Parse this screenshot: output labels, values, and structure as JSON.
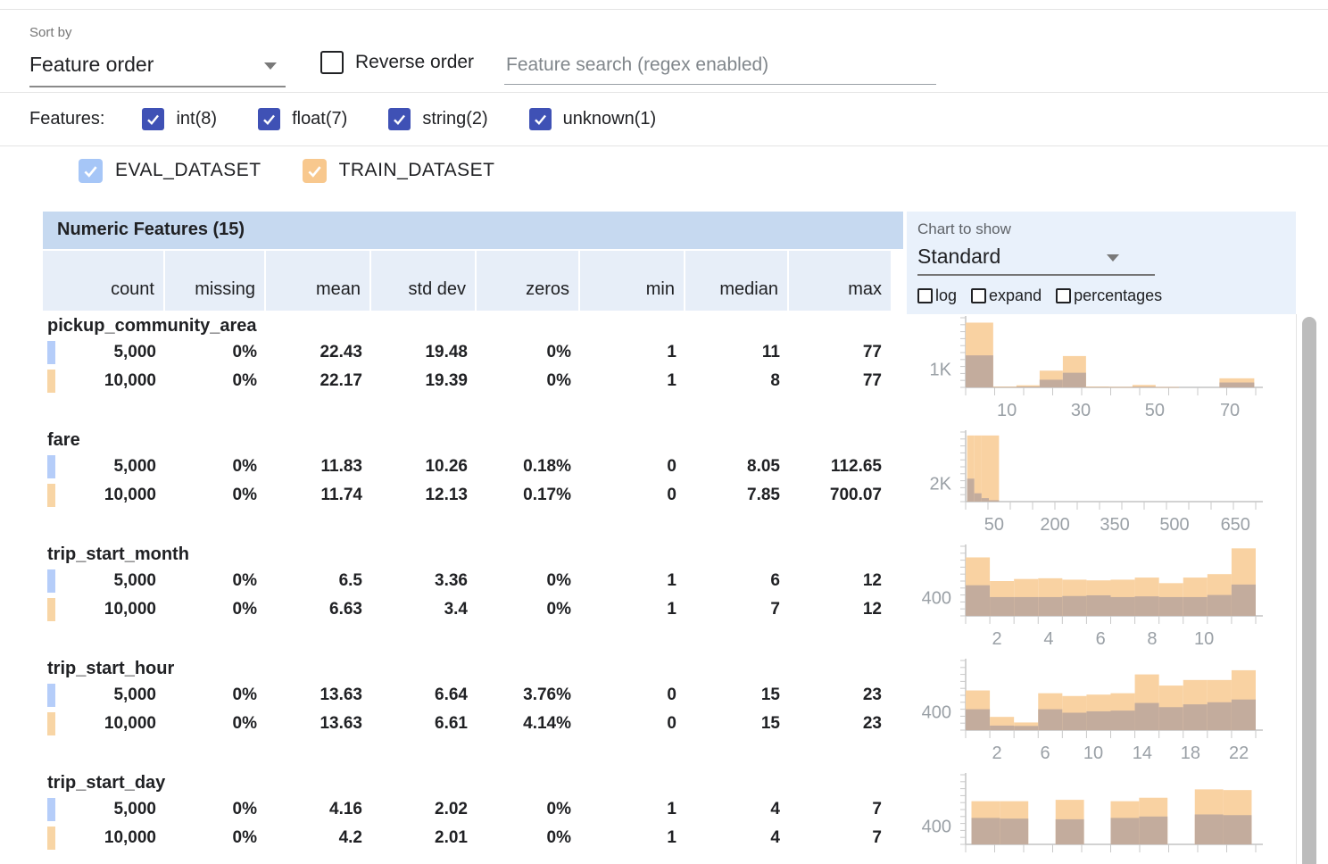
{
  "toolbar": {
    "sort_by_label": "Sort by",
    "sort_by_value": "Feature order",
    "reverse_order_label": "Reverse order",
    "search_placeholder": "Feature search (regex enabled)"
  },
  "filters": {
    "label": "Features:",
    "checkbox_color": "#3f51b5",
    "types": [
      "int(8)",
      "float(7)",
      "string(2)",
      "unknown(1)"
    ]
  },
  "datasets": [
    {
      "name": "EVAL_DATASET",
      "color": "#a6c6f7"
    },
    {
      "name": "TRAIN_DATASET",
      "color": "#f8c88e"
    }
  ],
  "table": {
    "title": "Numeric Features (15)",
    "columns": [
      "count",
      "missing",
      "mean",
      "std dev",
      "zeros",
      "min",
      "median",
      "max"
    ],
    "features": [
      {
        "name": "pickup_community_area",
        "rows": [
          {
            "marker": "#b5cdf9",
            "values": [
              "5,000",
              "0%",
              "22.43",
              "19.48",
              "0%",
              "1",
              "11",
              "77"
            ]
          },
          {
            "marker": "#f8d5a5",
            "values": [
              "10,000",
              "0%",
              "22.17",
              "19.39",
              "0%",
              "1",
              "8",
              "77"
            ]
          }
        ]
      },
      {
        "name": "fare",
        "rows": [
          {
            "marker": "#b5cdf9",
            "values": [
              "5,000",
              "0%",
              "11.83",
              "10.26",
              "0.18%",
              "0",
              "8.05",
              "112.65"
            ]
          },
          {
            "marker": "#f8d5a5",
            "values": [
              "10,000",
              "0%",
              "11.74",
              "12.13",
              "0.17%",
              "0",
              "7.85",
              "700.07"
            ]
          }
        ]
      },
      {
        "name": "trip_start_month",
        "rows": [
          {
            "marker": "#b5cdf9",
            "values": [
              "5,000",
              "0%",
              "6.5",
              "3.36",
              "0%",
              "1",
              "6",
              "12"
            ]
          },
          {
            "marker": "#f8d5a5",
            "values": [
              "10,000",
              "0%",
              "6.63",
              "3.4",
              "0%",
              "1",
              "7",
              "12"
            ]
          }
        ]
      },
      {
        "name": "trip_start_hour",
        "rows": [
          {
            "marker": "#b5cdf9",
            "values": [
              "5,000",
              "0%",
              "13.63",
              "6.64",
              "3.76%",
              "0",
              "15",
              "23"
            ]
          },
          {
            "marker": "#f8d5a5",
            "values": [
              "10,000",
              "0%",
              "13.63",
              "6.61",
              "4.14%",
              "0",
              "15",
              "23"
            ]
          }
        ]
      },
      {
        "name": "trip_start_day",
        "rows": [
          {
            "marker": "#b5cdf9",
            "values": [
              "5,000",
              "0%",
              "4.16",
              "2.02",
              "0%",
              "1",
              "4",
              "7"
            ]
          },
          {
            "marker": "#f8d5a5",
            "values": [
              "10,000",
              "0%",
              "4.2",
              "2.01",
              "0%",
              "1",
              "4",
              "7"
            ]
          }
        ]
      }
    ]
  },
  "chart_controls": {
    "label": "Chart to show",
    "selected": "Standard",
    "checkboxes": [
      "log",
      "expand",
      "percentages"
    ]
  },
  "chart_data": [
    {
      "type": "histogram",
      "feature": "pickup_community_area",
      "ylabel": "1K",
      "colors": {
        "train": "#f9d2a2",
        "overlap": "#c3ac9d"
      },
      "note": "bar heights are fractions of chart height; x0/x1 fractions of x-axis",
      "bars": [
        {
          "x0": 0.0,
          "x1": 0.095,
          "train": 0.93,
          "overlap": 0.46
        },
        {
          "x0": 0.095,
          "x1": 0.175,
          "train": 0.012,
          "overlap": 0.006
        },
        {
          "x0": 0.175,
          "x1": 0.255,
          "train": 0.03,
          "overlap": 0.012
        },
        {
          "x0": 0.255,
          "x1": 0.335,
          "train": 0.24,
          "overlap": 0.11
        },
        {
          "x0": 0.335,
          "x1": 0.415,
          "train": 0.45,
          "overlap": 0.21
        },
        {
          "x0": 0.415,
          "x1": 0.495,
          "train": 0.012,
          "overlap": 0.006
        },
        {
          "x0": 0.495,
          "x1": 0.575,
          "train": 0.008,
          "overlap": 0.004
        },
        {
          "x0": 0.575,
          "x1": 0.655,
          "train": 0.035,
          "overlap": 0.01
        },
        {
          "x0": 0.655,
          "x1": 0.735,
          "train": 0.006,
          "overlap": 0.003
        },
        {
          "x0": 0.875,
          "x1": 0.995,
          "train": 0.13,
          "overlap": 0.07
        }
      ],
      "xticks": [
        {
          "f": 0.142,
          "label": "10"
        },
        {
          "f": 0.397,
          "label": "30"
        },
        {
          "f": 0.652,
          "label": "50"
        },
        {
          "f": 0.911,
          "label": "70"
        }
      ],
      "minor_ticks": 10
    },
    {
      "type": "histogram",
      "feature": "fare",
      "ylabel": "2K",
      "colors": {
        "train": "#f9d2a2",
        "overlap": "#c3ac9d"
      },
      "bars": [
        {
          "x0": 0.005,
          "x1": 0.03,
          "train": 0.95,
          "overlap": 0.33
        },
        {
          "x0": 0.03,
          "x1": 0.055,
          "train": 0.95,
          "overlap": 0.12
        },
        {
          "x0": 0.055,
          "x1": 0.08,
          "train": 0.95,
          "overlap": 0.05
        },
        {
          "x0": 0.08,
          "x1": 0.115,
          "train": 0.95,
          "overlap": 0.02
        }
      ],
      "xticks": [
        {
          "f": 0.098,
          "label": "50"
        },
        {
          "f": 0.308,
          "label": "200"
        },
        {
          "f": 0.514,
          "label": "350"
        },
        {
          "f": 0.72,
          "label": "500"
        },
        {
          "f": 0.93,
          "label": "650"
        }
      ],
      "minor_ticks": 13
    },
    {
      "type": "histogram",
      "feature": "trip_start_month",
      "ylabel": "400",
      "colors": {
        "train": "#f9d2a2",
        "overlap": "#c3ac9d"
      },
      "bins": 12,
      "train_heights": [
        0.84,
        0.5,
        0.53,
        0.54,
        0.52,
        0.51,
        0.52,
        0.55,
        0.47,
        0.55,
        0.6,
        0.97
      ],
      "overlap_heights": [
        0.44,
        0.27,
        0.27,
        0.27,
        0.285,
        0.295,
        0.27,
        0.28,
        0.27,
        0.27,
        0.3,
        0.45
      ],
      "xticks": [
        {
          "f": 0.108,
          "label": "2"
        },
        {
          "f": 0.286,
          "label": "4"
        },
        {
          "f": 0.465,
          "label": "6"
        },
        {
          "f": 0.643,
          "label": "8"
        },
        {
          "f": 0.822,
          "label": "10"
        }
      ],
      "minor_ticks": 12
    },
    {
      "type": "histogram",
      "feature": "trip_start_hour",
      "ylabel": "400",
      "colors": {
        "train": "#f9d2a2",
        "overlap": "#c3ac9d"
      },
      "bins": 12,
      "train_heights": [
        0.57,
        0.19,
        0.11,
        0.53,
        0.49,
        0.51,
        0.53,
        0.8,
        0.64,
        0.72,
        0.72,
        0.86
      ],
      "overlap_heights": [
        0.3,
        0.065,
        0.06,
        0.3,
        0.25,
        0.27,
        0.28,
        0.39,
        0.33,
        0.37,
        0.4,
        0.44
      ],
      "xticks": [
        {
          "f": 0.108,
          "label": "2"
        },
        {
          "f": 0.274,
          "label": "6"
        },
        {
          "f": 0.44,
          "label": "10"
        },
        {
          "f": 0.609,
          "label": "14"
        },
        {
          "f": 0.775,
          "label": "18"
        },
        {
          "f": 0.942,
          "label": "22"
        }
      ],
      "minor_ticks": 12
    },
    {
      "type": "histogram",
      "feature": "trip_start_day",
      "ylabel": "400",
      "colors": {
        "train": "#f9d2a2",
        "overlap": "#c3ac9d"
      },
      "bars": [
        {
          "x0": 0.02,
          "x1": 0.118,
          "train": 0.62,
          "overlap": 0.38
        },
        {
          "x0": 0.118,
          "x1": 0.216,
          "train": 0.62,
          "overlap": 0.37
        },
        {
          "x0": 0.31,
          "x1": 0.408,
          "train": 0.64,
          "overlap": 0.36
        },
        {
          "x0": 0.5,
          "x1": 0.598,
          "train": 0.62,
          "overlap": 0.38
        },
        {
          "x0": 0.598,
          "x1": 0.696,
          "train": 0.67,
          "overlap": 0.4
        },
        {
          "x0": 0.79,
          "x1": 0.888,
          "train": 0.79,
          "overlap": 0.43
        },
        {
          "x0": 0.888,
          "x1": 0.986,
          "train": 0.78,
          "overlap": 0.42
        }
      ],
      "xticks": [],
      "minor_ticks": 10
    }
  ]
}
